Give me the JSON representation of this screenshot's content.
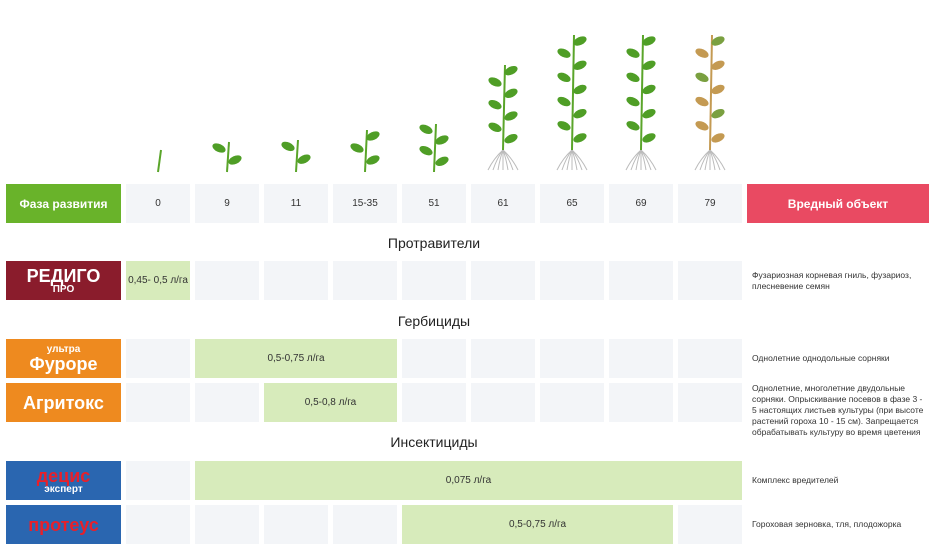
{
  "header": {
    "stage_label": "Фаза развития",
    "stages": [
      "0",
      "9",
      "11",
      "15-35",
      "51",
      "61",
      "65",
      "69",
      "79"
    ],
    "pest_label": "Вредный объект"
  },
  "sections": [
    {
      "title": "Протравители",
      "products": [
        {
          "logo": [
            "РЕДИГО",
            "ПРО"
          ],
          "dose": "0,45- 0,5 л/га",
          "pest": "Фузариозная корневая гниль, фузариоз, плесневение семян"
        }
      ]
    },
    {
      "title": "Гербициды",
      "products": [
        {
          "logo": [
            "ультра",
            "Фуроре"
          ],
          "dose": "0,5-0,75 л/га",
          "pest": "Однолетние однодольные сорняки"
        },
        {
          "logo": [
            "Агритокс"
          ],
          "dose": "0,5-0,8 л/га",
          "pest": "Однолетние, многолетние двудольные сорняки. Опрыскивание посевов в фазе 3 - 5 настоящих листьев культуры (при высоте растений гороха 10 - 15 см). Запрещается обрабатывать культуру во время цветения"
        }
      ]
    },
    {
      "title": "Инсектициды",
      "products": [
        {
          "logo": [
            "децис",
            "эксперт"
          ],
          "dose": "0,075 л/га",
          "pest": "Комплекс вредителей"
        },
        {
          "logo": [
            "протеус"
          ],
          "dose": "0,5-0,75 л/га",
          "pest": "Гороховая зерновка, тля, плодожорка"
        }
      ]
    }
  ]
}
